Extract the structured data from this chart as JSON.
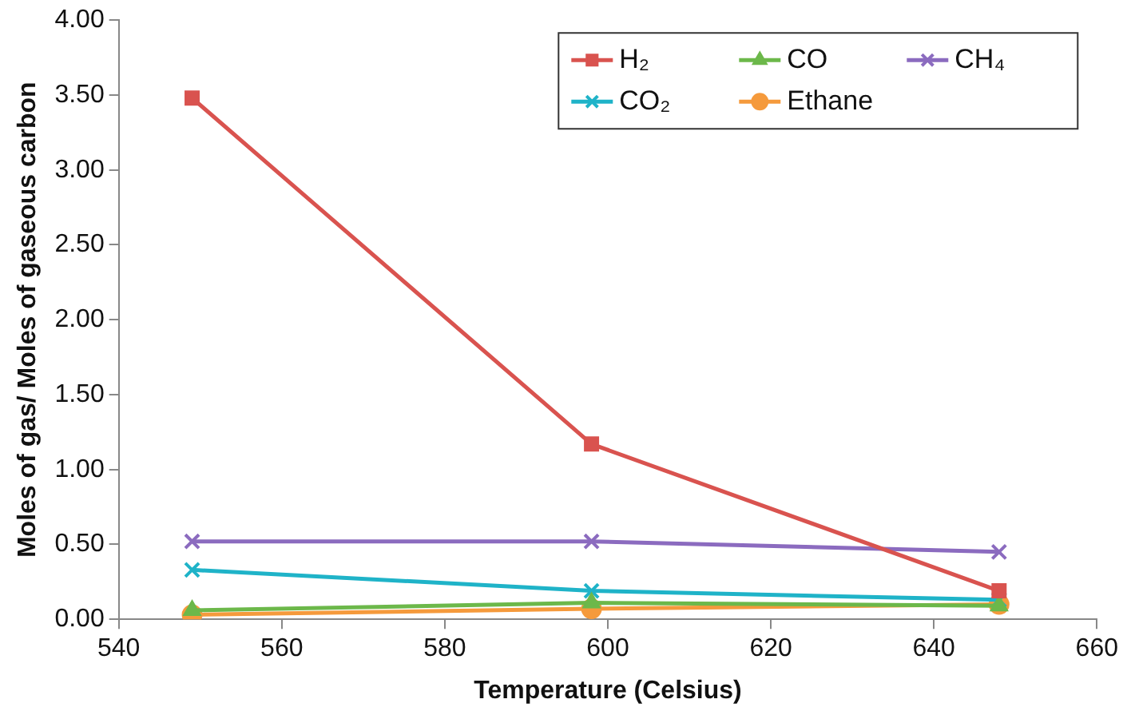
{
  "chart_data": {
    "type": "line",
    "xlabel": "Temperature (Celsius)",
    "ylabel": "Moles of gas/ Moles of gaseous carbon",
    "x": [
      549,
      598,
      648
    ],
    "xlim": [
      540,
      660
    ],
    "xticks": [
      540,
      560,
      580,
      600,
      620,
      640,
      660
    ],
    "ylim": [
      0,
      4
    ],
    "yticks": [
      {
        "value": 0,
        "label": "0.00"
      },
      {
        "value": 0.5,
        "label": "0.50"
      },
      {
        "value": 1,
        "label": "1.00"
      },
      {
        "value": 1.5,
        "label": "1.50"
      },
      {
        "value": 2,
        "label": "2.00"
      },
      {
        "value": 2.5,
        "label": "2.50"
      },
      {
        "value": 3,
        "label": "3.00"
      },
      {
        "value": 3.5,
        "label": "3.50"
      },
      {
        "value": 4,
        "label": "4.00"
      }
    ],
    "grid": false,
    "legend": "top right",
    "line_style": "solid",
    "series": [
      {
        "name": "H₂",
        "color": "#d9534f",
        "marker": "square",
        "values": [
          3.48,
          1.17,
          0.19
        ]
      },
      {
        "name": "CO",
        "color": "#6cb84a",
        "marker": "triangle",
        "values": [
          0.06,
          0.11,
          0.09
        ]
      },
      {
        "name": "CH₄",
        "color": "#8b6bbf",
        "marker": "cross",
        "values": [
          0.52,
          0.52,
          0.45
        ]
      },
      {
        "name": "CO₂",
        "color": "#1fb3c8",
        "marker": "cross",
        "values": [
          0.33,
          0.19,
          0.13
        ]
      },
      {
        "name": "Ethane",
        "color": "#f59a3c",
        "marker": "circle",
        "values": [
          0.03,
          0.07,
          0.1
        ]
      }
    ]
  }
}
